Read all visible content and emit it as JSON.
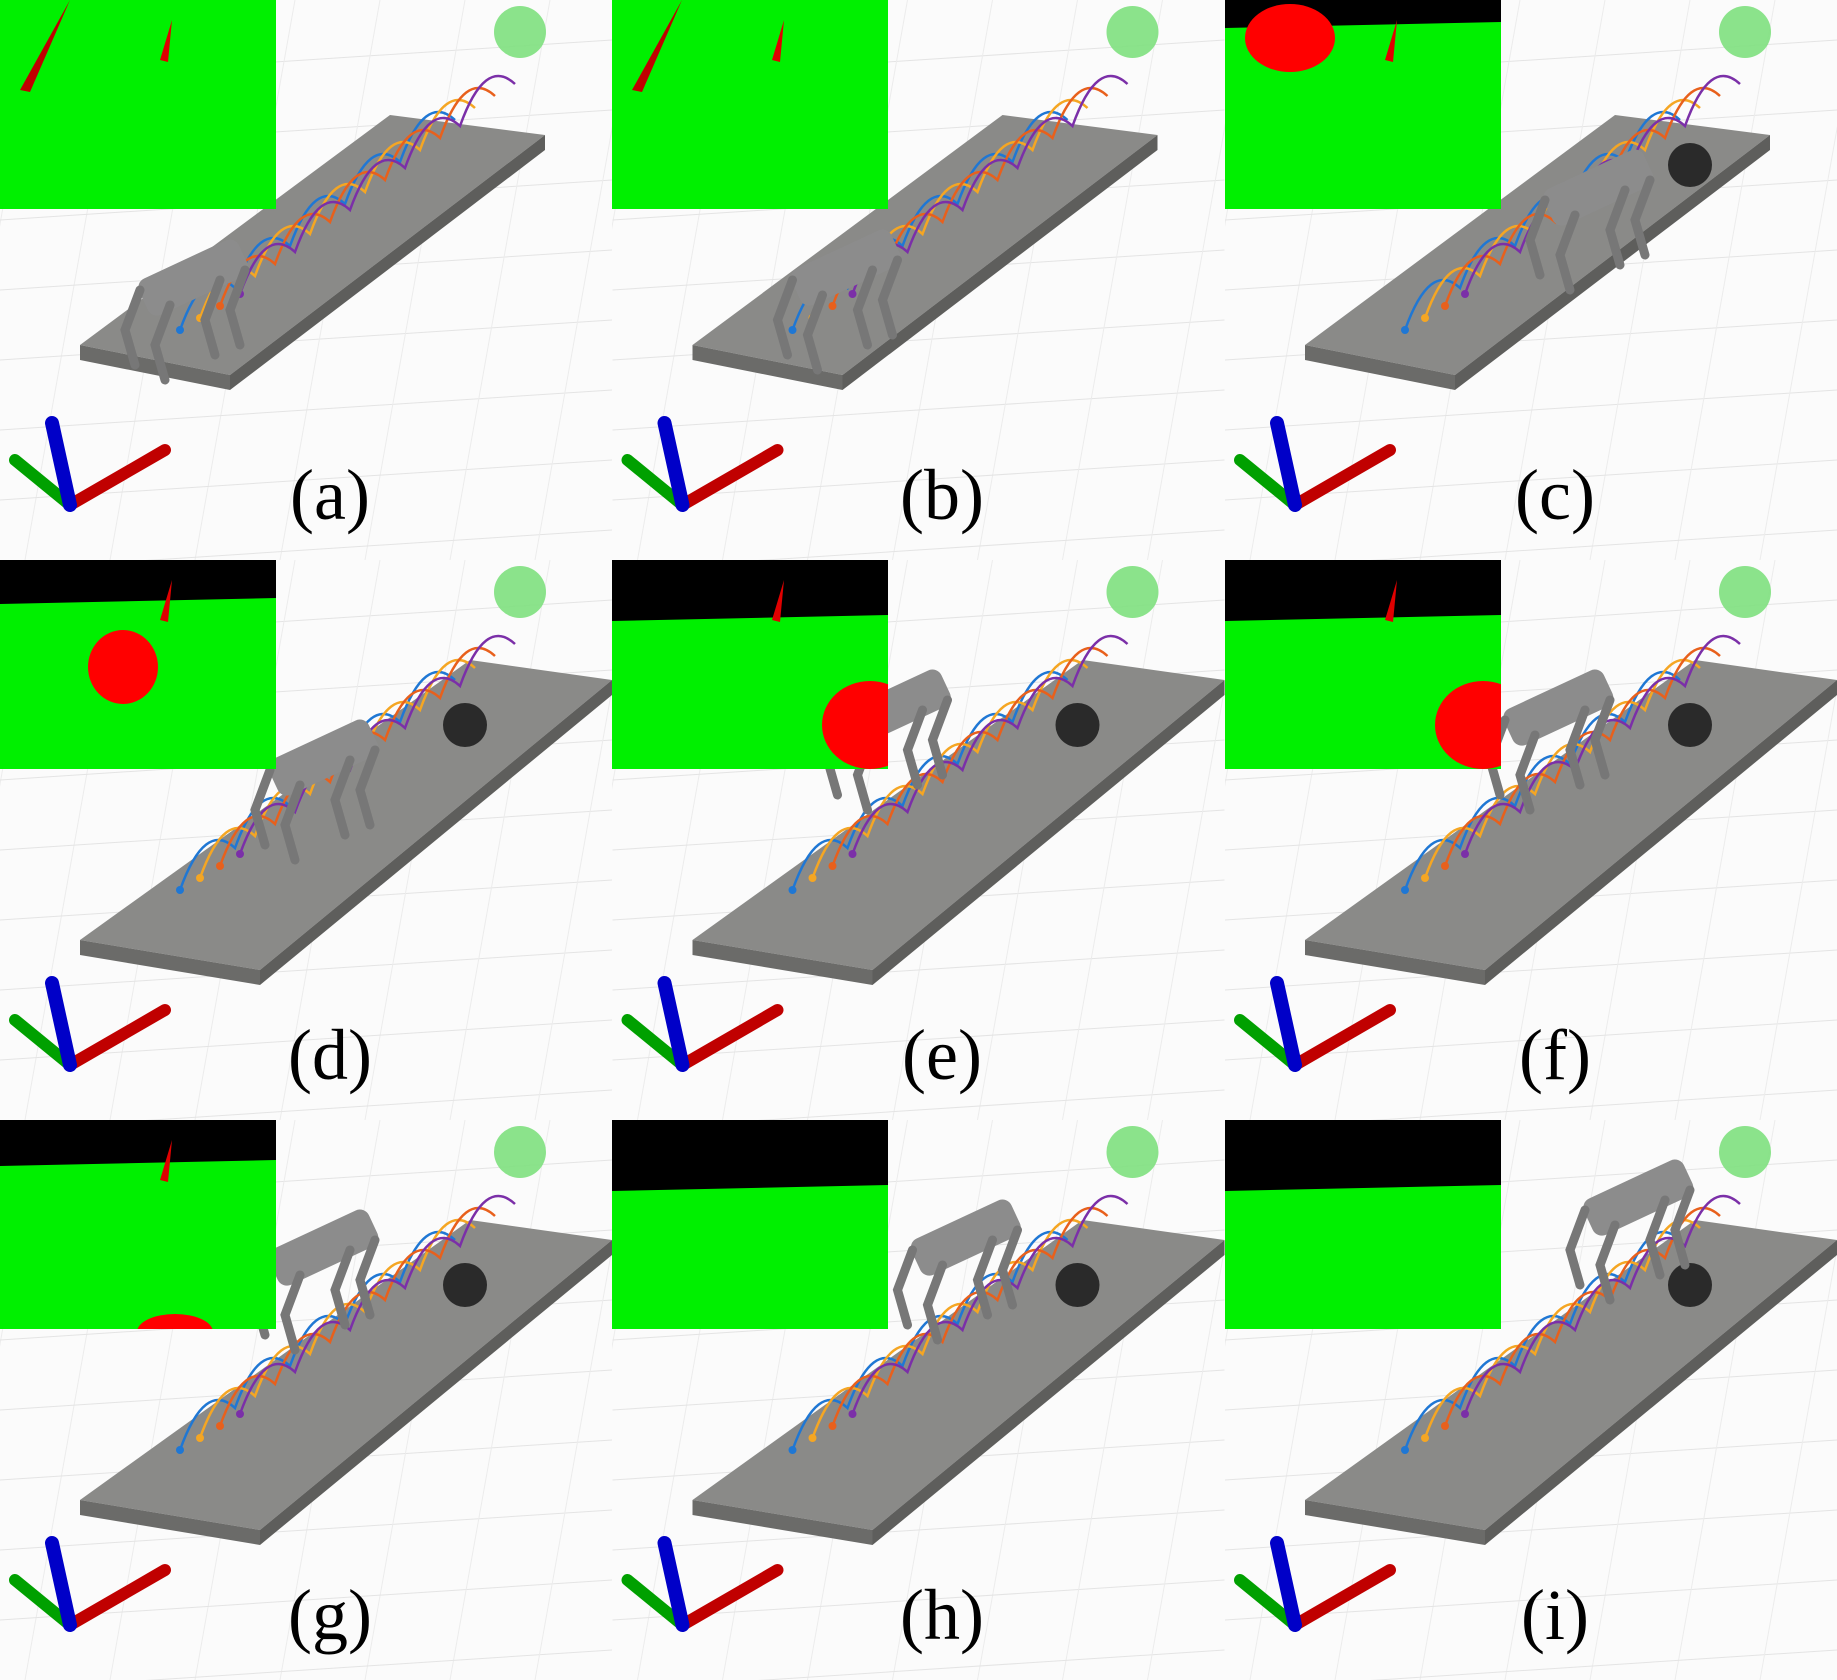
{
  "panels": [
    {
      "id": "a",
      "label": "(a)",
      "obstacle": false,
      "segmentation_obstacle": "none"
    },
    {
      "id": "b",
      "label": "(b)",
      "obstacle": false,
      "segmentation_obstacle": "none"
    },
    {
      "id": "c",
      "label": "(c)",
      "obstacle": true,
      "segmentation_obstacle": "top-left"
    },
    {
      "id": "d",
      "label": "(d)",
      "obstacle": true,
      "segmentation_obstacle": "center"
    },
    {
      "id": "e",
      "label": "(e)",
      "obstacle": true,
      "segmentation_obstacle": "right"
    },
    {
      "id": "f",
      "label": "(f)",
      "obstacle": true,
      "segmentation_obstacle": "right"
    },
    {
      "id": "g",
      "label": "(g)",
      "obstacle": true,
      "segmentation_obstacle": "bottom"
    },
    {
      "id": "h",
      "label": "(h)",
      "obstacle": true,
      "segmentation_obstacle": "none"
    },
    {
      "id": "i",
      "label": "(i)",
      "obstacle": true,
      "segmentation_obstacle": "none"
    }
  ],
  "colors": {
    "floor": "#8a8a88",
    "floor_dark": "#6b6b69",
    "ground": "#fbfbfb",
    "segmentation_free": "#00f000",
    "segmentation_obstacle": "#ff0000",
    "segmentation_sky": "#000000",
    "target": "#7ee07e",
    "obstacle": "#2a2a2a",
    "robot": "#8c8c8c",
    "trajectories": [
      "#1f77d4",
      "#f5a623",
      "#e8601c",
      "#7b2fa8"
    ],
    "axis_x": "#c00000",
    "axis_y": "#00a000",
    "axis_z": "#0000c8"
  }
}
